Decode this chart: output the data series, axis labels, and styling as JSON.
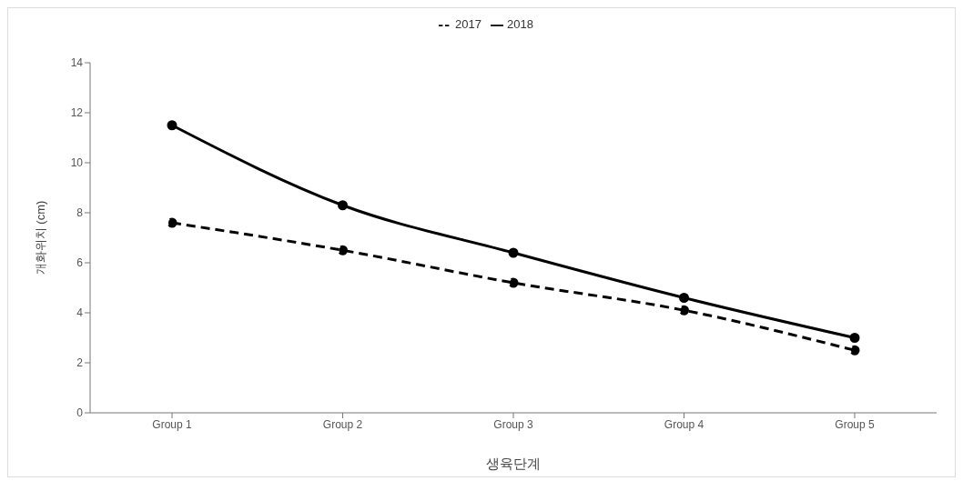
{
  "chart_data": {
    "type": "line",
    "xlabel": "생육단계",
    "ylabel": "개화위치 (cm)",
    "categories": [
      "Group 1",
      "Group 2",
      "Group 3",
      "Group 4",
      "Group 5"
    ],
    "series": [
      {
        "name": "2017",
        "color": "#000000",
        "values": [
          7.6,
          6.5,
          5.2,
          4.1,
          2.5
        ],
        "line_style": "dashed"
      },
      {
        "name": "2018",
        "color": "#000000",
        "values": [
          11.5,
          8.3,
          6.4,
          4.6,
          3.0
        ],
        "line_style": "solid"
      }
    ],
    "ylim": [
      0,
      14
    ],
    "yticks": [
      0,
      2,
      4,
      6,
      8,
      10,
      12,
      14
    ],
    "grid": false,
    "legend": "top",
    "marker": "circle"
  }
}
